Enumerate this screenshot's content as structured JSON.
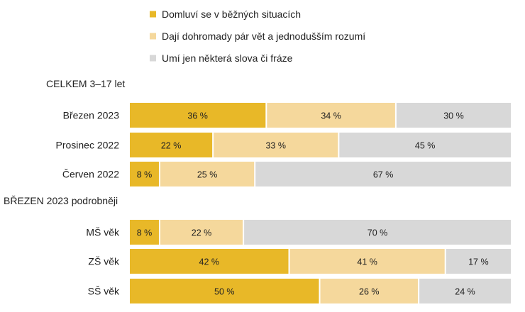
{
  "chart_data": {
    "type": "bar",
    "orientation": "horizontal",
    "stacked": true,
    "normalized": true,
    "legend_position": "top",
    "grid": false,
    "xlim": [
      0,
      100
    ],
    "value_suffix": " %",
    "legend": [
      {
        "name": "Domluví se v běžných situacích",
        "color": "#E8B828"
      },
      {
        "name": "Dají dohromady pár vět a jednodušším rozumí",
        "color": "#F5D89C"
      },
      {
        "name": "Umí jen některá slova či fráze",
        "color": "#D8D8D8"
      }
    ],
    "groups": [
      {
        "title": "CELKEM 3–17 let",
        "categories": [
          "Březen 2023",
          "Prosinec 2022",
          "Červen 2022"
        ],
        "series": [
          {
            "name": "Domluví se v běžných situacích",
            "values": [
              36,
              22,
              8
            ]
          },
          {
            "name": "Dají dohromady pár vět a jednodušším rozumí",
            "values": [
              34,
              33,
              25
            ]
          },
          {
            "name": "Umí jen některá slova či fráze",
            "values": [
              30,
              45,
              67
            ]
          }
        ]
      },
      {
        "title": "BŘEZEN 2023 podrobněji",
        "categories": [
          "MŠ věk",
          "ZŠ věk",
          "SŠ věk"
        ],
        "series": [
          {
            "name": "Domluví se v běžných situacích",
            "values": [
              8,
              42,
              50
            ]
          },
          {
            "name": "Dají dohromady pár vět a jednodušším rozumí",
            "values": [
              22,
              41,
              26
            ]
          },
          {
            "name": "Umí jen některá slova či fráze",
            "values": [
              70,
              17,
              24
            ]
          }
        ]
      }
    ]
  }
}
